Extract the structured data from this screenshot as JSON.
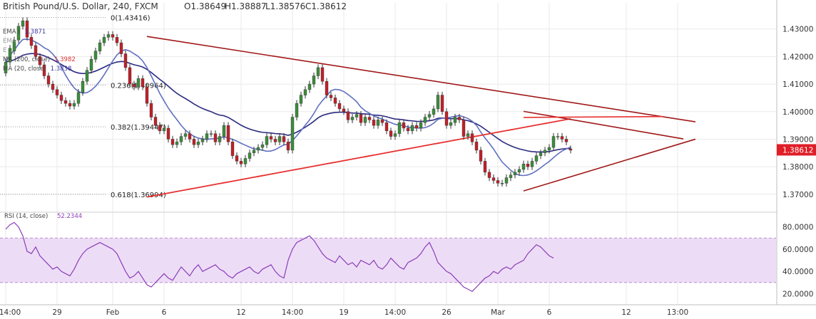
{
  "header": {
    "title": "British Pound/U.S. Dollar, 240, FXCM",
    "open_label": "O",
    "open": "1.38649",
    "high_label": "H",
    "high": "1.38887",
    "low_label": "L",
    "low": "1.38576",
    "close_label": "C",
    "close": "1.38612"
  },
  "indicators": [
    {
      "label": "EMA (",
      "value": "1.3871",
      "color": "#3a3aa0",
      "faded": false
    },
    {
      "label": "EMA",
      "value": "",
      "color": "#9a9a9a",
      "faded": true
    },
    {
      "label": "E",
      "value": "",
      "color": "#9a9a9a",
      "faded": true
    },
    {
      "label": "MA (200, close)",
      "value": "1.3982",
      "color": "#e03030",
      "faded": false
    },
    {
      "label": "MA (20, close)",
      "value": "1.3838",
      "color": "#3a3aa0",
      "faded": false
    },
    {
      "label": "",
      "value": "",
      "color": "#9a9a9a",
      "faded": true
    }
  ],
  "rsi_label": {
    "text": "RSI (14, close)",
    "value": "52.2344"
  },
  "colors": {
    "bull": "#3c8c3c",
    "bear": "#c0202a",
    "ma200": "#e83030",
    "ema": "#2a2a80",
    "ma20": "#6070c0",
    "trendline": "#a01818",
    "rsi": "#8a3fb8",
    "rsi_band": "#eddcf6",
    "grid": "#eaeaea",
    "price_tag": "#e01e28"
  },
  "chart_data": [
    {
      "type": "candlestick",
      "title": "British Pound/U.S. Dollar, 240, FXCM",
      "xlabel": "",
      "ylabel": "",
      "ylim": [
        1.364,
        1.4395
      ],
      "y_ticks": [
        1.37,
        1.38,
        1.39,
        1.4,
        1.41,
        1.42,
        1.43
      ],
      "y_tick_labels": [
        "1.37000",
        "1.38000",
        "1.39000",
        "1.40000",
        "1.41000",
        "1.42000",
        "1.43000"
      ],
      "x_ticks": [
        {
          "label": "14:00",
          "i": 0
        },
        {
          "label": "29",
          "i": 12
        },
        {
          "label": "Feb",
          "i": 25
        },
        {
          "label": "6",
          "i": 37
        },
        {
          "label": "12",
          "i": 55
        },
        {
          "label": "14:00",
          "i": 67
        },
        {
          "label": "19",
          "i": 79
        },
        {
          "label": "14:00",
          "i": 91
        },
        {
          "label": "26",
          "i": 103
        },
        {
          "label": "Mar",
          "i": 115
        },
        {
          "label": "6",
          "i": 127
        },
        {
          "label": "12",
          "i": 145
        },
        {
          "label": "13:00",
          "i": 157
        }
      ],
      "last_price": "1.38612",
      "close": [
        1.418,
        1.423,
        1.426,
        1.431,
        1.433,
        1.427,
        1.424,
        1.42,
        1.417,
        1.413,
        1.41,
        1.408,
        1.406,
        1.404,
        1.403,
        1.402,
        1.403,
        1.407,
        1.411,
        1.415,
        1.419,
        1.422,
        1.425,
        1.427,
        1.428,
        1.427,
        1.425,
        1.421,
        1.416,
        1.41,
        1.409,
        1.412,
        1.409,
        1.403,
        1.398,
        1.395,
        1.393,
        1.394,
        1.39,
        1.388,
        1.389,
        1.391,
        1.392,
        1.39,
        1.388,
        1.389,
        1.39,
        1.392,
        1.392,
        1.389,
        1.391,
        1.395,
        1.389,
        1.384,
        1.382,
        1.381,
        1.383,
        1.385,
        1.386,
        1.387,
        1.388,
        1.391,
        1.39,
        1.389,
        1.391,
        1.389,
        1.386,
        1.398,
        1.403,
        1.406,
        1.408,
        1.41,
        1.413,
        1.416,
        1.411,
        1.406,
        1.405,
        1.403,
        1.401,
        1.4,
        1.397,
        1.398,
        1.399,
        1.396,
        1.398,
        1.397,
        1.395,
        1.397,
        1.396,
        1.393,
        1.391,
        1.392,
        1.396,
        1.394,
        1.393,
        1.395,
        1.394,
        1.396,
        1.398,
        1.399,
        1.401,
        1.406,
        1.4,
        1.395,
        1.396,
        1.398,
        1.397,
        1.391,
        1.392,
        1.389,
        1.386,
        1.382,
        1.378,
        1.376,
        1.375,
        1.374,
        1.374,
        1.376,
        1.377,
        1.378,
        1.379,
        1.381,
        1.38,
        1.382,
        1.384,
        1.385,
        1.386,
        1.387,
        1.391,
        1.391,
        1.39,
        1.389,
        1.386
      ],
      "open": [
        1.414,
        1.418,
        1.422,
        1.426,
        1.431,
        1.433,
        1.427,
        1.424,
        1.42,
        1.417,
        1.413,
        1.41,
        1.408,
        1.406,
        1.404,
        1.403,
        1.402,
        1.403,
        1.407,
        1.411,
        1.415,
        1.419,
        1.422,
        1.425,
        1.427,
        1.428,
        1.427,
        1.425,
        1.421,
        1.416,
        1.41,
        1.409,
        1.412,
        1.409,
        1.403,
        1.398,
        1.395,
        1.393,
        1.394,
        1.39,
        1.388,
        1.389,
        1.391,
        1.392,
        1.39,
        1.388,
        1.389,
        1.39,
        1.392,
        1.392,
        1.389,
        1.391,
        1.395,
        1.389,
        1.384,
        1.382,
        1.381,
        1.383,
        1.385,
        1.386,
        1.387,
        1.388,
        1.391,
        1.39,
        1.389,
        1.391,
        1.389,
        1.386,
        1.398,
        1.403,
        1.406,
        1.408,
        1.41,
        1.413,
        1.416,
        1.411,
        1.406,
        1.405,
        1.403,
        1.401,
        1.4,
        1.397,
        1.398,
        1.399,
        1.396,
        1.398,
        1.397,
        1.395,
        1.397,
        1.396,
        1.393,
        1.391,
        1.392,
        1.396,
        1.394,
        1.393,
        1.395,
        1.394,
        1.396,
        1.398,
        1.399,
        1.401,
        1.406,
        1.4,
        1.395,
        1.396,
        1.398,
        1.397,
        1.391,
        1.392,
        1.389,
        1.386,
        1.382,
        1.378,
        1.376,
        1.375,
        1.374,
        1.374,
        1.376,
        1.377,
        1.378,
        1.379,
        1.381,
        1.38,
        1.382,
        1.384,
        1.385,
        1.386,
        1.387,
        1.391,
        1.391,
        1.39,
        1.38649
      ],
      "annotations": [
        {
          "label": "0(1.43416)",
          "y": 1.43416
        },
        {
          "label": "0.236(1.40964)",
          "y": 1.40964
        },
        {
          "label": "0.382(1.39447)",
          "y": 1.39447
        },
        {
          "label": "0.618(1.36994)",
          "y": 1.36994
        }
      ]
    },
    {
      "type": "line",
      "title": "RSI (14, close)",
      "ylim": [
        10,
        92
      ],
      "y_ticks": [
        20,
        40,
        60,
        80
      ],
      "y_tick_labels": [
        "20.0000",
        "40.0000",
        "60.0000",
        "80.0000"
      ],
      "band": [
        30,
        70
      ],
      "series": [
        {
          "name": "RSI (14, close)",
          "values": [
            78,
            82,
            84,
            80,
            72,
            58,
            56,
            62,
            54,
            50,
            46,
            42,
            44,
            40,
            38,
            36,
            42,
            50,
            56,
            60,
            62,
            64,
            66,
            64,
            62,
            60,
            56,
            48,
            40,
            34,
            36,
            40,
            34,
            28,
            26,
            30,
            34,
            38,
            34,
            32,
            38,
            44,
            40,
            36,
            42,
            46,
            40,
            42,
            44,
            46,
            42,
            40,
            36,
            34,
            38,
            40,
            42,
            44,
            40,
            38,
            42,
            44,
            46,
            40,
            36,
            34,
            50,
            60,
            66,
            68,
            70,
            72,
            68,
            62,
            56,
            52,
            50,
            48,
            54,
            50,
            46,
            48,
            44,
            50,
            48,
            46,
            50,
            44,
            42,
            46,
            52,
            48,
            44,
            42,
            48,
            50,
            52,
            56,
            62,
            66,
            58,
            48,
            44,
            40,
            38,
            34,
            30,
            26,
            24,
            22,
            26,
            30,
            34,
            36,
            40,
            38,
            42,
            44,
            42,
            46,
            48,
            50,
            56,
            60,
            64,
            62,
            58,
            54,
            52
          ]
        }
      ]
    }
  ]
}
